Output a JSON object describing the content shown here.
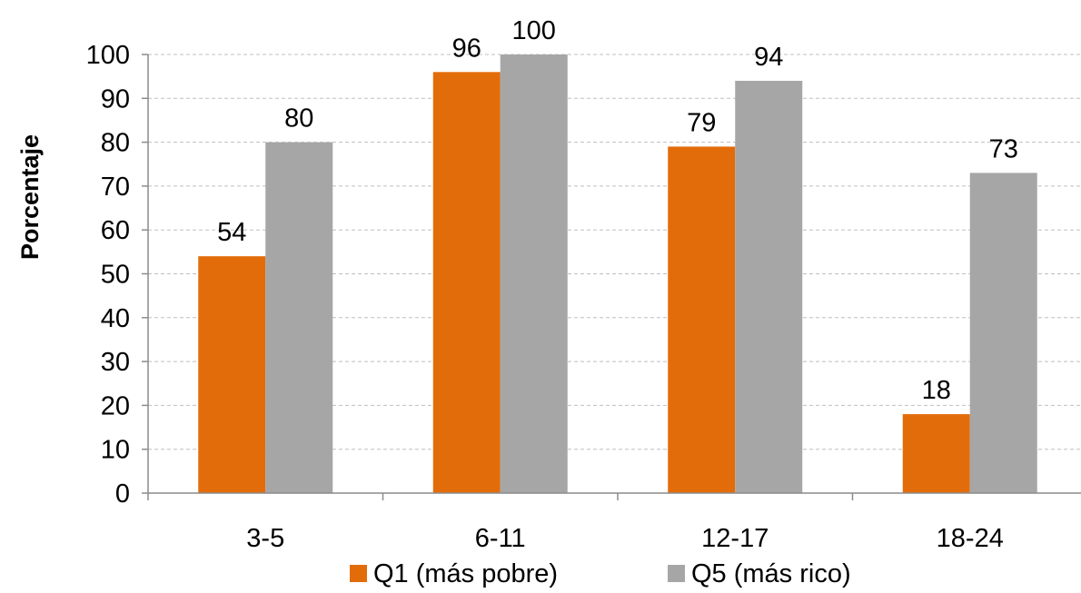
{
  "chart_data": {
    "type": "bar",
    "categories": [
      "3-5",
      "6-11",
      "12-17",
      "18-24"
    ],
    "series": [
      {
        "name": "Q1 (más pobre)",
        "values": [
          54,
          96,
          79,
          18
        ],
        "color": "#E36C0A"
      },
      {
        "name": "Q5 (más rico)",
        "values": [
          80,
          100,
          94,
          73
        ],
        "color": "#A6A6A6"
      }
    ],
    "title": "",
    "xlabel": "",
    "ylabel": "Porcentaje",
    "ylim": [
      0,
      100
    ],
    "yticks": [
      0,
      10,
      20,
      30,
      40,
      50,
      60,
      70,
      80,
      90,
      100
    ],
    "grid": true,
    "legend_position": "bottom",
    "data_labels": true
  }
}
